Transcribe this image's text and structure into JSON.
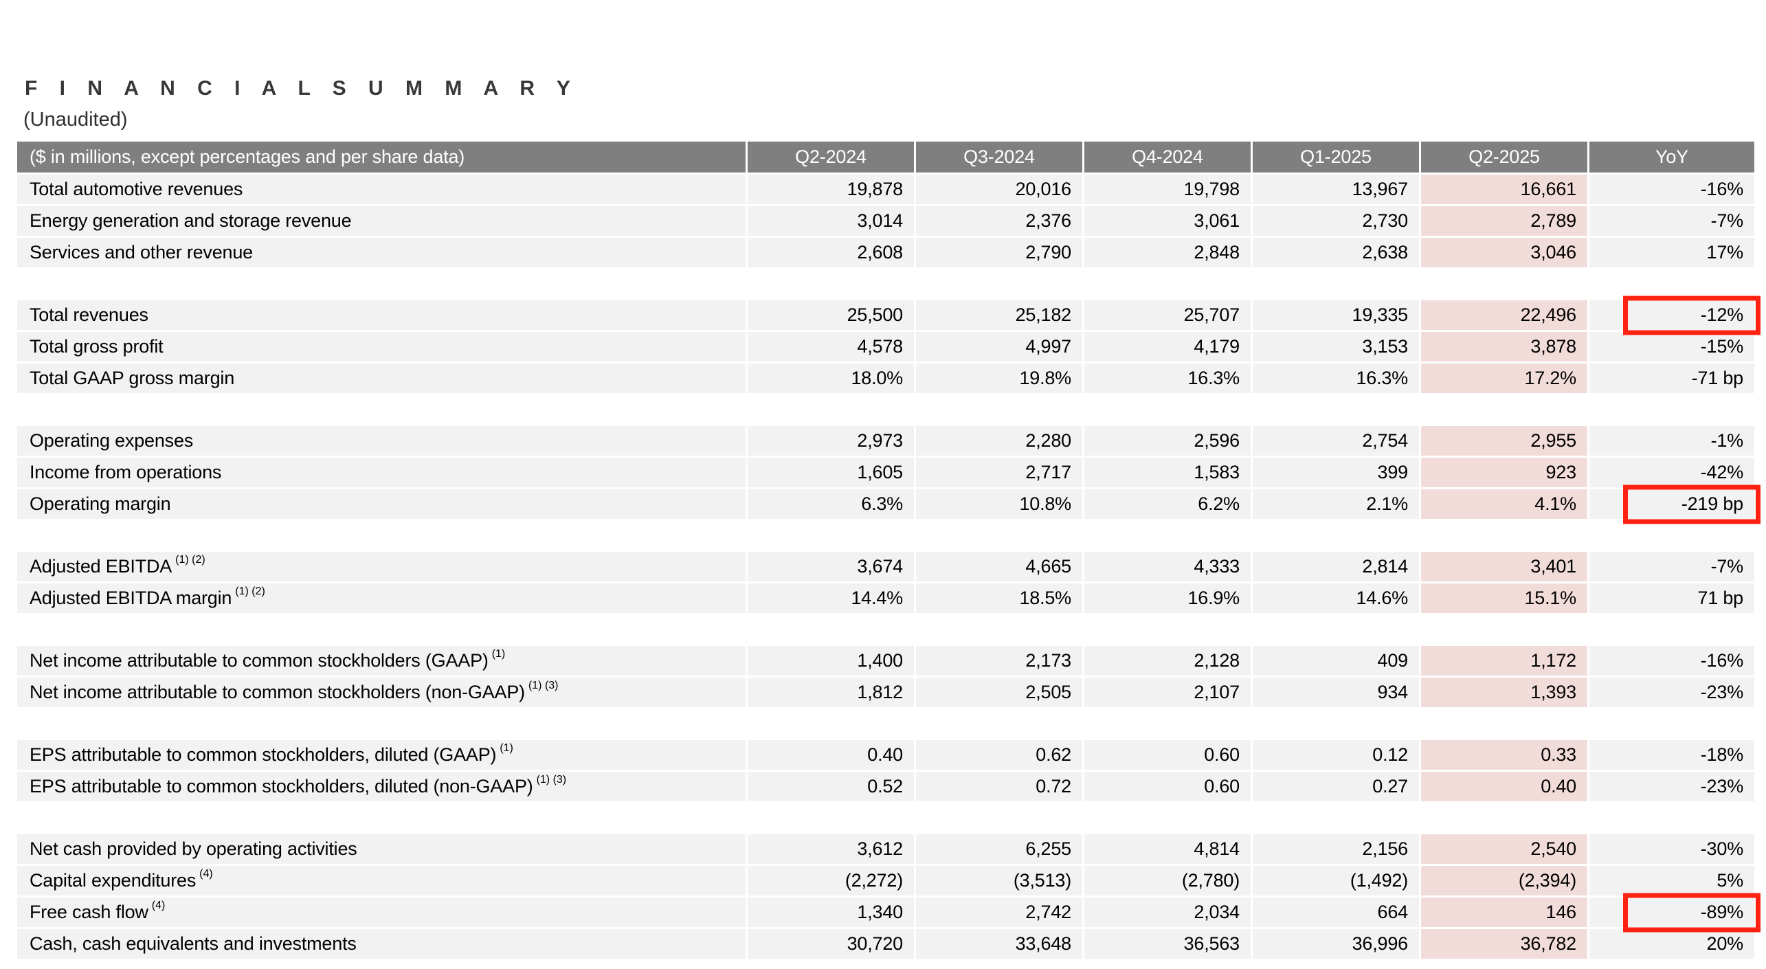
{
  "page": {
    "title": "F I N A N C I A L   S U M M A R Y",
    "subtitle": "(Unaudited)"
  },
  "colors": {
    "header_bg": "#7f7f7f",
    "header_text": "#ffffff",
    "row_bg": "#f2f2f2",
    "highlight_column_bg": "#f2dcda",
    "annotation_box": "#fe2212"
  },
  "table": {
    "header": {
      "label": "($ in millions, except percentages and per share data)",
      "columns": [
        "Q2-2024",
        "Q3-2024",
        "Q4-2024",
        "Q1-2025",
        "Q2-2025",
        "YoY"
      ]
    },
    "highlight_column": "Q2-2025",
    "sections": [
      {
        "rows": [
          {
            "label": "Total automotive revenues",
            "sup": "",
            "values": [
              "19,878",
              "20,016",
              "19,798",
              "13,967",
              "16,661"
            ],
            "yoy": "-16%",
            "red_box": false
          },
          {
            "label": "Energy generation and storage revenue",
            "sup": "",
            "values": [
              "3,014",
              "2,376",
              "3,061",
              "2,730",
              "2,789"
            ],
            "yoy": "-7%",
            "red_box": false
          },
          {
            "label": "Services and other revenue",
            "sup": "",
            "values": [
              "2,608",
              "2,790",
              "2,848",
              "2,638",
              "3,046"
            ],
            "yoy": "17%",
            "red_box": false
          }
        ]
      },
      {
        "rows": [
          {
            "label": "Total revenues",
            "sup": "",
            "values": [
              "25,500",
              "25,182",
              "25,707",
              "19,335",
              "22,496"
            ],
            "yoy": "-12%",
            "red_box": true
          },
          {
            "label": "Total gross profit",
            "sup": "",
            "values": [
              "4,578",
              "4,997",
              "4,179",
              "3,153",
              "3,878"
            ],
            "yoy": "-15%",
            "red_box": false
          },
          {
            "label": "Total GAAP gross margin",
            "sup": "",
            "values": [
              "18.0%",
              "19.8%",
              "16.3%",
              "16.3%",
              "17.2%"
            ],
            "yoy": "-71 bp",
            "red_box": false
          }
        ]
      },
      {
        "rows": [
          {
            "label": "Operating expenses",
            "sup": "",
            "values": [
              "2,973",
              "2,280",
              "2,596",
              "2,754",
              "2,955"
            ],
            "yoy": "-1%",
            "red_box": false
          },
          {
            "label": "Income from operations",
            "sup": "",
            "values": [
              "1,605",
              "2,717",
              "1,583",
              "399",
              "923"
            ],
            "yoy": "-42%",
            "red_box": false
          },
          {
            "label": "Operating margin",
            "sup": "",
            "values": [
              "6.3%",
              "10.8%",
              "6.2%",
              "2.1%",
              "4.1%"
            ],
            "yoy": "-219 bp",
            "red_box": true
          }
        ]
      },
      {
        "rows": [
          {
            "label": "Adjusted EBITDA",
            "sup": "(1) (2)",
            "values": [
              "3,674",
              "4,665",
              "4,333",
              "2,814",
              "3,401"
            ],
            "yoy": "-7%",
            "red_box": false
          },
          {
            "label": "Adjusted EBITDA margin",
            "sup": "(1) (2)",
            "values": [
              "14.4%",
              "18.5%",
              "16.9%",
              "14.6%",
              "15.1%"
            ],
            "yoy": "71 bp",
            "red_box": false
          }
        ]
      },
      {
        "rows": [
          {
            "label": "Net income attributable to common stockholders (GAAP)",
            "sup": "(1)",
            "values": [
              "1,400",
              "2,173",
              "2,128",
              "409",
              "1,172"
            ],
            "yoy": "-16%",
            "red_box": false
          },
          {
            "label": "Net income attributable to common stockholders (non-GAAP)",
            "sup": "(1) (3)",
            "values": [
              "1,812",
              "2,505",
              "2,107",
              "934",
              "1,393"
            ],
            "yoy": "-23%",
            "red_box": false
          }
        ]
      },
      {
        "rows": [
          {
            "label": "EPS attributable to common stockholders, diluted (GAAP)",
            "sup": "(1)",
            "values": [
              "0.40",
              "0.62",
              "0.60",
              "0.12",
              "0.33"
            ],
            "yoy": "-18%",
            "red_box": false
          },
          {
            "label": "EPS attributable to common stockholders, diluted (non-GAAP)",
            "sup": "(1) (3)",
            "values": [
              "0.52",
              "0.72",
              "0.60",
              "0.27",
              "0.40"
            ],
            "yoy": "-23%",
            "red_box": false
          }
        ]
      },
      {
        "rows": [
          {
            "label": "Net cash provided by operating activities",
            "sup": "",
            "values": [
              "3,612",
              "6,255",
              "4,814",
              "2,156",
              "2,540"
            ],
            "yoy": "-30%",
            "red_box": false
          },
          {
            "label": "Capital expenditures",
            "sup": "(4)",
            "values": [
              "(2,272)",
              "(3,513)",
              "(2,780)",
              "(1,492)",
              "(2,394)"
            ],
            "yoy": "5%",
            "red_box": false
          },
          {
            "label": "Free cash flow",
            "sup": "(4)",
            "values": [
              "1,340",
              "2,742",
              "2,034",
              "664",
              "146"
            ],
            "yoy": "-89%",
            "red_box": true
          },
          {
            "label": "Cash, cash equivalents and investments",
            "sup": "",
            "values": [
              "30,720",
              "33,648",
              "36,563",
              "36,996",
              "36,782"
            ],
            "yoy": "20%",
            "red_box": false
          }
        ]
      }
    ]
  }
}
